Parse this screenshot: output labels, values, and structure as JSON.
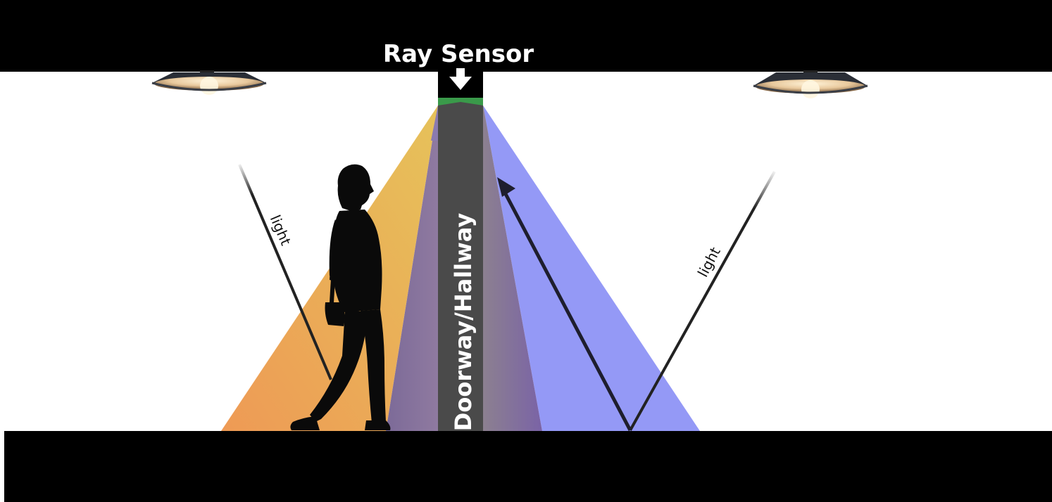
{
  "labels": {
    "sensor_title": "Ray Sensor",
    "doorway": "Doorway/Hallway",
    "light_left": "light",
    "light_right": "light"
  },
  "colors": {
    "ceiling": "#000000",
    "floor": "#000000",
    "column": "#4a4a4a",
    "sensor_strip": "#3a9a4a",
    "orange_beam": "#e8a040",
    "yellow_beam": "#e6c050",
    "purple_beam": "#8a7196",
    "blue_beam": "#9499f6",
    "light_ray": "#222222"
  },
  "icons": {
    "sensor_arrow": "arrow-down-icon",
    "lamp": "ceiling-lamp-icon",
    "person": "walking-person-silhouette"
  }
}
